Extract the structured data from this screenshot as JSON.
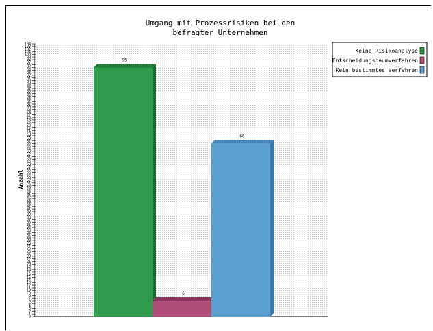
{
  "chart_data": {
    "type": "bar",
    "title": "Umgang mit Prozessrisiken bei den befragter Unternehmen",
    "title_lines": [
      "Umgang mit Prozessrisiken bei den",
      "befragter Unternehmen"
    ],
    "xlabel": "",
    "ylabel": "Anzahl",
    "categories": [
      "Keine Risikoanalyse",
      "Entscheidungsbaumverfahren",
      "Kein bestimmtes Verfahren"
    ],
    "values": [
      95,
      6,
      66
    ],
    "data_labels": [
      "95",
      "6",
      "66"
    ],
    "colors": [
      "#2e9c4a",
      "#b24e7a",
      "#5b9fd0"
    ],
    "side_colors": [
      "#1f6e34",
      "#7c2c52",
      "#3a77a6"
    ],
    "top_colors": [
      "#237a3a",
      "#8d355f",
      "#4584b6"
    ],
    "ylim": [
      0,
      104
    ],
    "y_ticks": [
      0,
      1,
      2,
      3,
      4,
      5,
      6,
      7,
      8,
      9,
      10,
      11,
      12,
      13,
      14,
      15,
      16,
      17,
      18,
      19,
      20,
      21,
      22,
      23,
      24,
      25,
      26,
      27,
      28,
      29,
      30,
      31,
      32,
      33,
      34,
      35,
      36,
      37,
      38,
      39,
      40,
      41,
      42,
      43,
      44,
      45,
      46,
      47,
      48,
      49,
      50,
      51,
      52,
      53,
      54,
      55,
      56,
      57,
      58,
      59,
      60,
      61,
      62,
      63,
      64,
      65,
      66,
      67,
      68,
      69,
      70,
      71,
      72,
      73,
      74,
      75,
      76,
      77,
      78,
      79,
      80,
      81,
      82,
      83,
      84,
      85,
      86,
      87,
      88,
      89,
      90,
      91,
      92,
      93,
      94,
      95,
      96,
      97,
      98,
      99,
      100,
      101,
      102,
      103,
      104
    ],
    "grid": true,
    "legend": {
      "position": "top-right",
      "entries": [
        "Keine Risikoanalyse",
        "Entscheidungsbaumverfahren",
        "Kein bestimmtes Verfahren"
      ]
    }
  }
}
